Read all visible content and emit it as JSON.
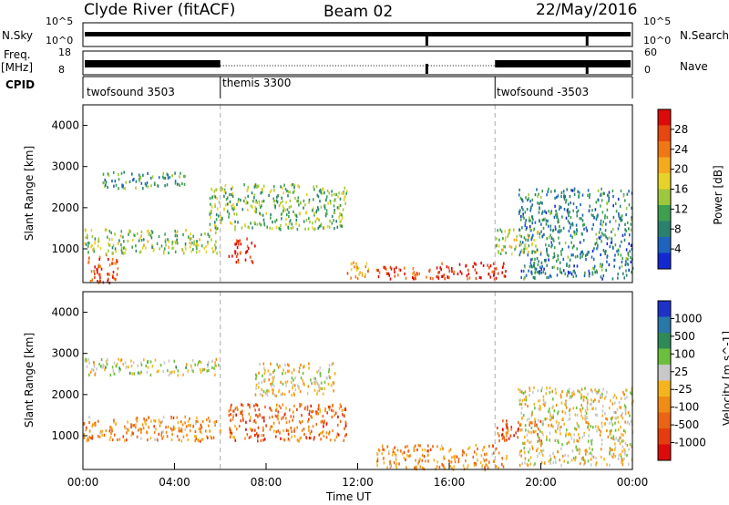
{
  "header": {
    "station": "Clyde River (fitACF)",
    "beam": "Beam 02",
    "date": "22/May/2016"
  },
  "top_panels": {
    "nsky_label": "N.Sky",
    "nsky_ticks": [
      "10^5",
      "10^0"
    ],
    "nsearch_label": "N.Search",
    "nsearch_ticks": [
      "10^5",
      "10^0"
    ],
    "freq_label": "Freq.",
    "freq_unit": "[MHz]",
    "freq_ticks": [
      "18",
      "8"
    ],
    "nave_label": "Nave",
    "nave_ticks": [
      "60",
      "0"
    ],
    "cpid_label": "CPID",
    "cpid_segments": [
      {
        "start_hour": 0,
        "end_hour": 6,
        "name": "twofsound 3503"
      },
      {
        "start_hour": 6,
        "end_hour": 18,
        "name": "themis 3300"
      },
      {
        "start_hour": 18,
        "end_hour": 24,
        "name": "twofsound -3503"
      }
    ]
  },
  "chart_data": [
    {
      "type": "heatmap",
      "name": "power",
      "ylabel": "Slant Range [km]",
      "y_ticks": [
        1000,
        2000,
        3000,
        4000
      ],
      "ylim": [
        180,
        4500
      ],
      "xlim": [
        0,
        24
      ],
      "colorbar": {
        "label": "Power [dB]",
        "ticks": [
          "4",
          "8",
          "12",
          "16",
          "20",
          "24",
          "28"
        ],
        "colors": [
          "#1428d2",
          "#1e64be",
          "#28826e",
          "#3ca050",
          "#9ec83c",
          "#e6d228",
          "#f5aa1e",
          "#f07814",
          "#e6460f",
          "#dc0a0a"
        ]
      },
      "features": [
        {
          "x": [
            0.2,
            1.5
          ],
          "y": [
            200,
            900
          ],
          "level": 0.85
        },
        {
          "x": [
            0.0,
            6.0
          ],
          "y": [
            900,
            1500
          ],
          "level": 0.45
        },
        {
          "x": [
            0.8,
            4.5
          ],
          "y": [
            2500,
            2900
          ],
          "level": 0.3
        },
        {
          "x": [
            6.3,
            7.5
          ],
          "y": [
            700,
            1300
          ],
          "level": 0.95
        },
        {
          "x": [
            5.5,
            11.5
          ],
          "y": [
            1500,
            2600
          ],
          "level": 0.4
        },
        {
          "x": [
            11.5,
            12.5
          ],
          "y": [
            300,
            700
          ],
          "level": 0.65
        },
        {
          "x": [
            12.8,
            15.5
          ],
          "y": [
            300,
            600
          ],
          "level": 0.85
        },
        {
          "x": [
            15.5,
            18.5
          ],
          "y": [
            300,
            700
          ],
          "level": 0.95
        },
        {
          "x": [
            18.0,
            20.0
          ],
          "y": [
            900,
            1500
          ],
          "level": 0.5
        },
        {
          "x": [
            19.0,
            24.0
          ],
          "y": [
            300,
            2500
          ],
          "level": 0.25
        }
      ]
    },
    {
      "type": "heatmap",
      "name": "velocity",
      "xlabel": "Time UT",
      "ylabel": "Slant Range [km]",
      "x_ticks": [
        "00:00",
        "04:00",
        "08:00",
        "12:00",
        "16:00",
        "20:00",
        "00:00"
      ],
      "y_ticks": [
        1000,
        2000,
        3000,
        4000
      ],
      "ylim": [
        180,
        4500
      ],
      "xlim": [
        0,
        24
      ],
      "colorbar": {
        "label": "Velocity [m s^-1]",
        "ticks": [
          "1000",
          "500",
          "100",
          "25",
          "-25",
          "-100",
          "-500",
          "-1000"
        ],
        "colors": [
          "#1e32c8",
          "#2878aa",
          "#2e8b57",
          "#6cbf3c",
          "#c8c8c8",
          "#f5b41e",
          "#f08c14",
          "#eb6414",
          "#e63c0f",
          "#dc0a0a"
        ]
      },
      "features": [
        {
          "x": [
            0.0,
            6.0
          ],
          "y": [
            2500,
            2900
          ],
          "level": 0.45
        },
        {
          "x": [
            0.0,
            6.0
          ],
          "y": [
            900,
            1500
          ],
          "level": 0.65
        },
        {
          "x": [
            6.3,
            11.5
          ],
          "y": [
            900,
            1800
          ],
          "level": 0.75
        },
        {
          "x": [
            7.5,
            11.0
          ],
          "y": [
            2000,
            2800
          ],
          "level": 0.5
        },
        {
          "x": [
            12.8,
            18.5
          ],
          "y": [
            200,
            800
          ],
          "level": 0.65
        },
        {
          "x": [
            18.0,
            20.0
          ],
          "y": [
            900,
            1400
          ],
          "level": 0.75
        },
        {
          "x": [
            19.0,
            24.0
          ],
          "y": [
            300,
            2200
          ],
          "level": 0.5
        }
      ]
    }
  ]
}
